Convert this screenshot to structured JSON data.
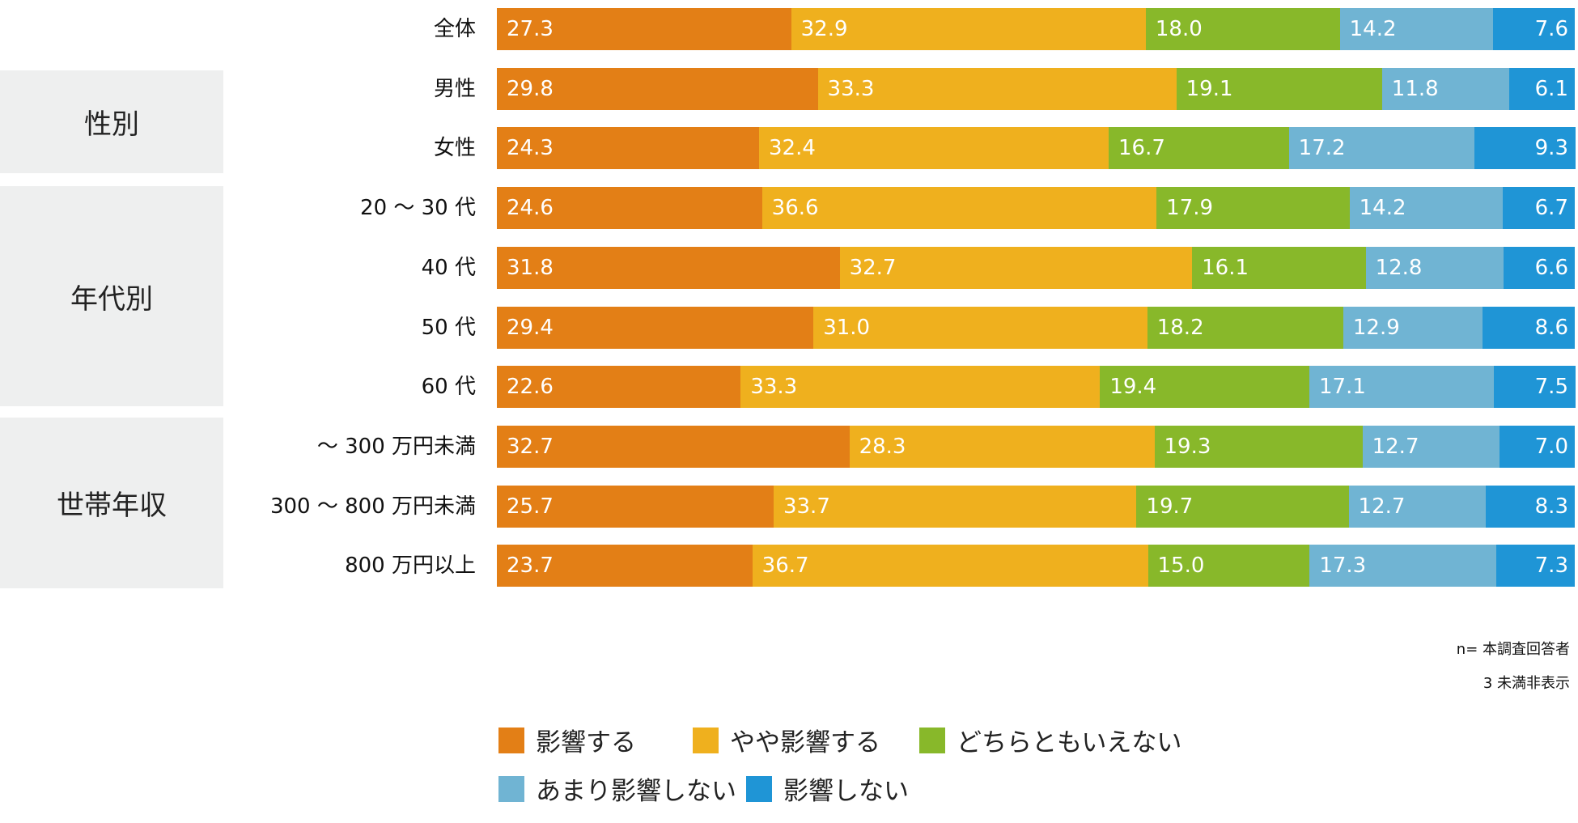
{
  "chart_data": {
    "type": "bar",
    "orientation": "horizontal",
    "stacked": true,
    "unit": "%",
    "categories": [
      "全体",
      "男性",
      "女性",
      "20 ～ 30 代",
      "40 代",
      "50 代",
      "60 代",
      "～ 300 万円未満",
      "300 ～ 800 万円未満",
      "800 万円以上"
    ],
    "groups": [
      {
        "label": "性別",
        "members": [
          "男性",
          "女性"
        ]
      },
      {
        "label": "年代別",
        "members": [
          "20 ～ 30 代",
          "40 代",
          "50 代",
          "60 代"
        ]
      },
      {
        "label": "世帯年収",
        "members": [
          "～ 300 万円未満",
          "300 ～ 800 万円未満",
          "800 万円以上"
        ]
      }
    ],
    "series": [
      {
        "name": "影響する",
        "color": "#e37f16",
        "values": [
          27.3,
          29.8,
          24.3,
          24.6,
          31.8,
          29.4,
          22.6,
          32.7,
          25.7,
          23.7
        ]
      },
      {
        "name": "やや影響する",
        "color": "#efb01e",
        "values": [
          32.9,
          33.3,
          32.4,
          36.6,
          32.7,
          31.0,
          33.3,
          28.3,
          33.7,
          36.7
        ]
      },
      {
        "name": "どちらともいえない",
        "color": "#88b82a",
        "values": [
          18.0,
          19.1,
          16.7,
          17.9,
          16.1,
          18.2,
          19.4,
          19.3,
          19.7,
          15.0
        ]
      },
      {
        "name": "あまり影響しない",
        "color": "#70b4d3",
        "values": [
          14.2,
          11.8,
          17.2,
          14.2,
          12.8,
          12.9,
          17.1,
          12.7,
          12.7,
          17.3
        ]
      },
      {
        "name": "影響しない",
        "color": "#1f95d6",
        "values": [
          7.6,
          6.1,
          9.3,
          6.7,
          6.6,
          8.6,
          7.5,
          7.0,
          8.3,
          7.3
        ]
      }
    ],
    "notes": [
      "n= 本調査回答者",
      "3 未満非表示"
    ],
    "legend_position": "bottom"
  }
}
